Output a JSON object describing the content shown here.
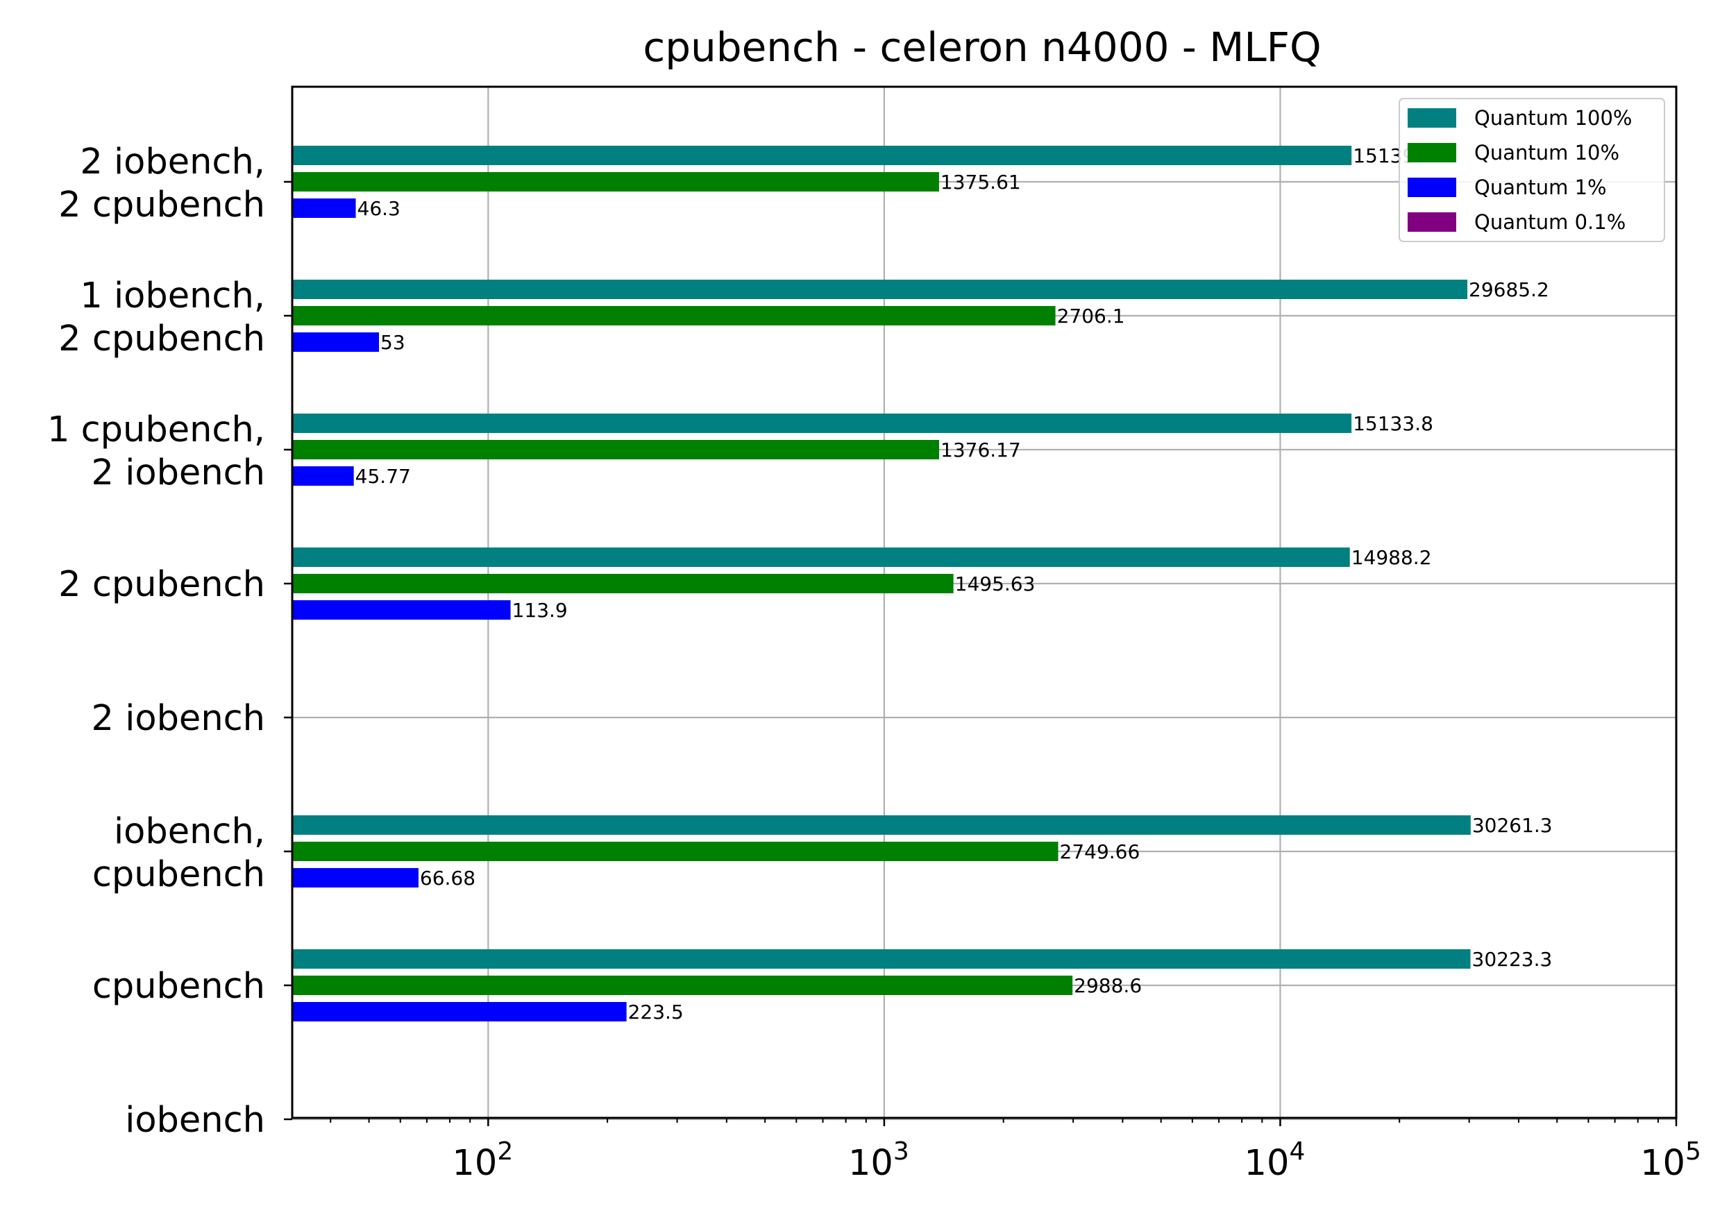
{
  "chart_data": {
    "type": "bar",
    "orientation": "horizontal",
    "title": "cpubench - celeron n4000 - MLFQ",
    "xlabel": "",
    "ylabel": "",
    "xscale": "log",
    "xlim": [
      32,
      100000
    ],
    "grid": true,
    "legend_position": "top-right",
    "x_tick_labels": [
      {
        "base": "10",
        "exp": "2"
      },
      {
        "base": "10",
        "exp": "3"
      },
      {
        "base": "10",
        "exp": "4"
      },
      {
        "base": "10",
        "exp": "5"
      }
    ],
    "categories": [
      [
        "2 iobench,",
        "2 cpubench"
      ],
      [
        "1 iobench,",
        "2 cpubench"
      ],
      [
        "1 cpubench,",
        "2 iobench"
      ],
      [
        "2 cpubench"
      ],
      [
        "2 iobench"
      ],
      [
        "iobench,",
        "cpubench"
      ],
      [
        "cpubench"
      ],
      [
        "iobench"
      ]
    ],
    "series": [
      {
        "name": "Quantum 100%",
        "color": "#008080",
        "values": [
          15139,
          29685.2,
          15133.8,
          14988.2,
          null,
          30261.3,
          30223.3,
          null
        ],
        "labels": [
          "15139",
          "29685.2",
          "15133.8",
          "14988.2",
          null,
          "30261.3",
          "30223.3",
          null
        ]
      },
      {
        "name": "Quantum 10%",
        "color": "#008000",
        "values": [
          1375.61,
          2706.1,
          1376.17,
          1495.63,
          null,
          2749.66,
          2988.6,
          null
        ],
        "labels": [
          "1375.61",
          "2706.1",
          "1376.17",
          "1495.63",
          null,
          "2749.66",
          "2988.6",
          null
        ]
      },
      {
        "name": "Quantum 1%",
        "color": "#0000ff",
        "values": [
          46.3,
          53,
          45.77,
          113.9,
          null,
          66.68,
          223.5,
          null
        ],
        "labels": [
          "46.3",
          "53",
          "45.77",
          "113.9",
          null,
          "66.68",
          "223.5",
          null
        ]
      },
      {
        "name": "Quantum 0.1%",
        "color": "#800080",
        "values": [
          null,
          null,
          null,
          null,
          null,
          null,
          null,
          null
        ],
        "labels": [
          null,
          null,
          null,
          null,
          null,
          null,
          null,
          null
        ]
      }
    ]
  }
}
